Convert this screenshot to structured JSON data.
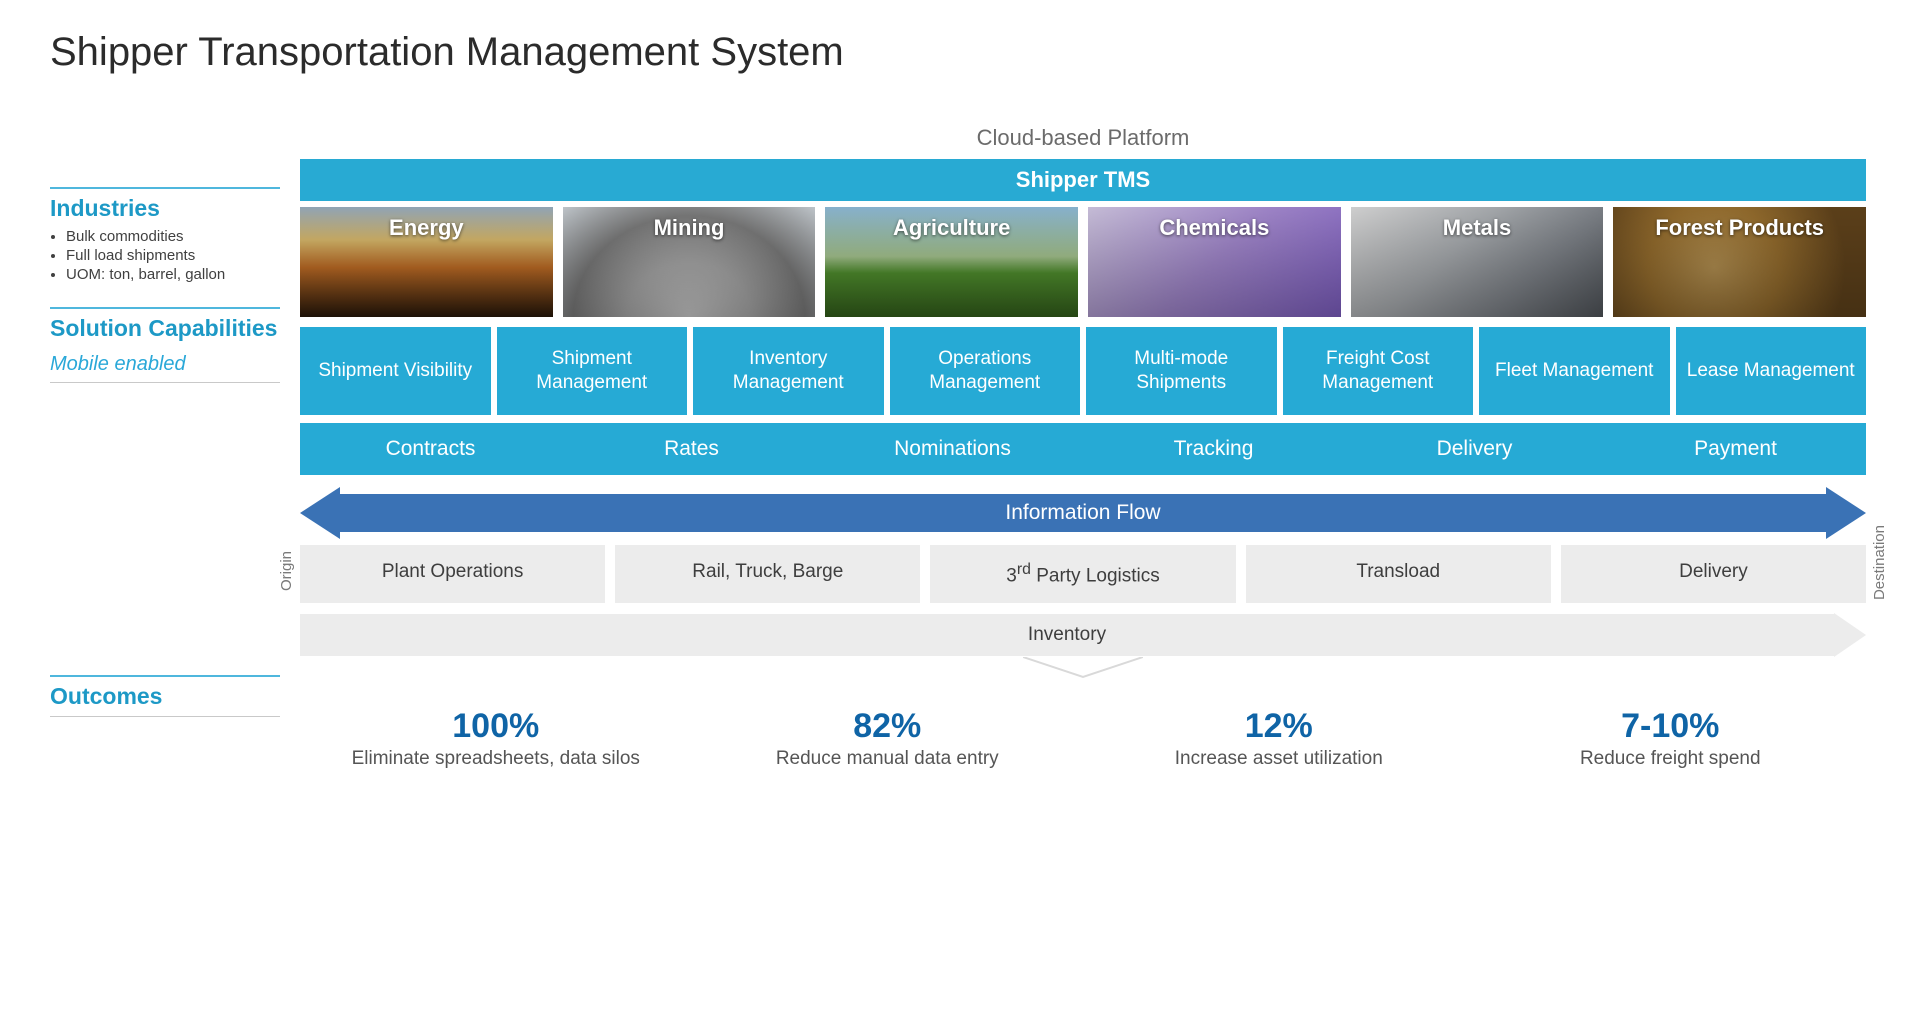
{
  "title": "Shipper Transportation Management System",
  "platform_label": "Cloud-based Platform",
  "tms_bar_label": "Shipper TMS",
  "colors": {
    "brand_cyan": "#26aad5",
    "brand_blue": "#3a72b5",
    "outcome_blue": "#0f64a6",
    "label_blue": "#1d99c6",
    "grey_tile": "#ececec",
    "background": "#ffffff"
  },
  "left": {
    "industries_label": "Industries",
    "industries_bullets": [
      "Bulk commodities",
      "Full load shipments",
      "UOM: ton, barrel, gallon"
    ],
    "solution_label": "Solution Capabilities",
    "mobile_label": "Mobile enabled",
    "outcomes_label": "Outcomes"
  },
  "industries": [
    {
      "label": "Energy",
      "bg_class": "bg-energy"
    },
    {
      "label": "Mining",
      "bg_class": "bg-mining"
    },
    {
      "label": "Agriculture",
      "bg_class": "bg-agriculture"
    },
    {
      "label": "Chemicals",
      "bg_class": "bg-chemicals"
    },
    {
      "label": "Metals",
      "bg_class": "bg-metals"
    },
    {
      "label": "Forest Products",
      "bg_class": "bg-forest"
    }
  ],
  "capabilities": [
    "Shipment Visibility",
    "Shipment Management",
    "Inventory Management",
    "Operations Management",
    "Multi-mode Shipments",
    "Freight Cost Management",
    "Fleet Management",
    "Lease Management"
  ],
  "process_steps": [
    "Contracts",
    "Rates",
    "Nominations",
    "Tracking",
    "Delivery",
    "Payment"
  ],
  "info_flow_label": "Information Flow",
  "origin_label": "Origin",
  "destination_label": "Destination",
  "flow_steps": [
    "Plant Operations",
    "Rail, Truck, Barge",
    "3rd Party Logistics",
    "Transload",
    "Delivery"
  ],
  "inventory_label": "Inventory",
  "outcomes": [
    {
      "value": "100%",
      "desc": "Eliminate spreadsheets, data silos"
    },
    {
      "value": "82%",
      "desc": "Reduce manual data entry"
    },
    {
      "value": "12%",
      "desc": "Increase asset utilization"
    },
    {
      "value": "7-10%",
      "desc": "Reduce freight spend"
    }
  ]
}
